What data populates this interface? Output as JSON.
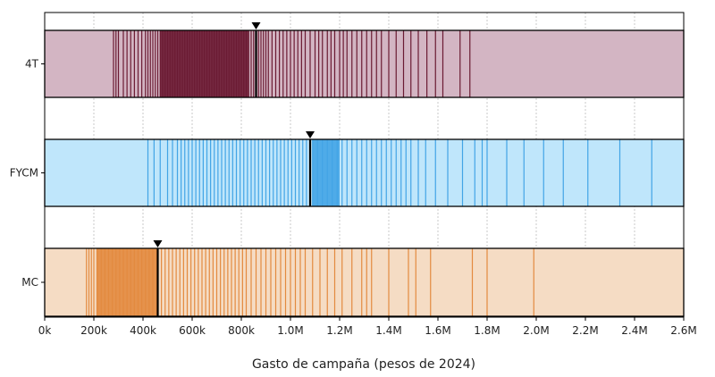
{
  "chart_data": {
    "type": "strip",
    "xlabel": "Gasto de campaña (pesos de 2024)",
    "x_unit": "pesos",
    "xlim": [
      0,
      2600000
    ],
    "x_ticks": [
      {
        "value": 0,
        "label": "0k"
      },
      {
        "value": 200000,
        "label": "200k"
      },
      {
        "value": 400000,
        "label": "400k"
      },
      {
        "value": 600000,
        "label": "600k"
      },
      {
        "value": 800000,
        "label": "800k"
      },
      {
        "value": 1000000,
        "label": "1.0M"
      },
      {
        "value": 1200000,
        "label": "1.2M"
      },
      {
        "value": 1400000,
        "label": "1.4M"
      },
      {
        "value": 1600000,
        "label": "1.6M"
      },
      {
        "value": 1800000,
        "label": "1.8M"
      },
      {
        "value": 2000000,
        "label": "2.0M"
      },
      {
        "value": 2200000,
        "label": "2.2M"
      },
      {
        "value": 2400000,
        "label": "2.4M"
      },
      {
        "value": 2600000,
        "label": "2.6M"
      }
    ],
    "grid": true,
    "series": [
      {
        "name": "4T",
        "background_color": "#d3b5c3",
        "line_color": "#6b1a33",
        "dense_from": 470000,
        "dense_to": 830000,
        "marker": 860000,
        "values": [
          280000,
          290000,
          300000,
          320000,
          335000,
          350000,
          365000,
          380000,
          395000,
          410000,
          420000,
          430000,
          440000,
          450000,
          460000,
          470000,
          480000,
          490000,
          500000,
          510000,
          520000,
          530000,
          540000,
          550000,
          560000,
          570000,
          580000,
          590000,
          600000,
          610000,
          620000,
          630000,
          640000,
          650000,
          660000,
          670000,
          680000,
          690000,
          700000,
          710000,
          720000,
          730000,
          740000,
          750000,
          760000,
          770000,
          780000,
          790000,
          800000,
          810000,
          820000,
          830000,
          840000,
          850000,
          870000,
          880000,
          890000,
          900000,
          910000,
          925000,
          940000,
          955000,
          970000,
          985000,
          1000000,
          1015000,
          1030000,
          1045000,
          1060000,
          1080000,
          1100000,
          1115000,
          1130000,
          1150000,
          1165000,
          1180000,
          1200000,
          1215000,
          1230000,
          1250000,
          1270000,
          1290000,
          1310000,
          1330000,
          1350000,
          1370000,
          1400000,
          1430000,
          1460000,
          1490000,
          1520000,
          1555000,
          1590000,
          1620000,
          1690000,
          1730000
        ]
      },
      {
        "name": "FYCM",
        "background_color": "#bfe6fb",
        "line_color": "#42a4e6",
        "dense_from": 1090000,
        "dense_to": 1200000,
        "marker": 1080000,
        "values": [
          420000,
          445000,
          470000,
          500000,
          520000,
          540000,
          555000,
          570000,
          585000,
          600000,
          615000,
          630000,
          645000,
          660000,
          675000,
          690000,
          705000,
          720000,
          735000,
          750000,
          765000,
          780000,
          795000,
          810000,
          825000,
          840000,
          855000,
          870000,
          885000,
          900000,
          915000,
          930000,
          945000,
          960000,
          975000,
          990000,
          1005000,
          1020000,
          1035000,
          1050000,
          1065000,
          1090000,
          1110000,
          1130000,
          1150000,
          1170000,
          1190000,
          1210000,
          1230000,
          1250000,
          1270000,
          1290000,
          1310000,
          1330000,
          1350000,
          1370000,
          1390000,
          1410000,
          1430000,
          1450000,
          1470000,
          1490000,
          1520000,
          1550000,
          1590000,
          1640000,
          1700000,
          1750000,
          1780000,
          1800000,
          1880000,
          1950000,
          2030000,
          2110000,
          2210000,
          2340000,
          2470000
        ]
      },
      {
        "name": "MC",
        "background_color": "#f5dcc4",
        "line_color": "#e38a3f",
        "dense_from": 210000,
        "dense_to": 460000,
        "marker": 460000,
        "values": [
          170000,
          180000,
          190000,
          200000,
          215000,
          230000,
          245000,
          260000,
          275000,
          290000,
          305000,
          320000,
          335000,
          350000,
          365000,
          380000,
          395000,
          410000,
          425000,
          440000,
          455000,
          475000,
          490000,
          505000,
          520000,
          535000,
          550000,
          565000,
          580000,
          595000,
          610000,
          625000,
          640000,
          655000,
          670000,
          685000,
          700000,
          715000,
          730000,
          745000,
          760000,
          775000,
          790000,
          805000,
          820000,
          840000,
          860000,
          880000,
          900000,
          920000,
          940000,
          960000,
          980000,
          1000000,
          1020000,
          1040000,
          1060000,
          1090000,
          1120000,
          1150000,
          1180000,
          1210000,
          1250000,
          1290000,
          1310000,
          1330000,
          1400000,
          1480000,
          1510000,
          1570000,
          1740000,
          1800000,
          1990000
        ]
      }
    ]
  }
}
